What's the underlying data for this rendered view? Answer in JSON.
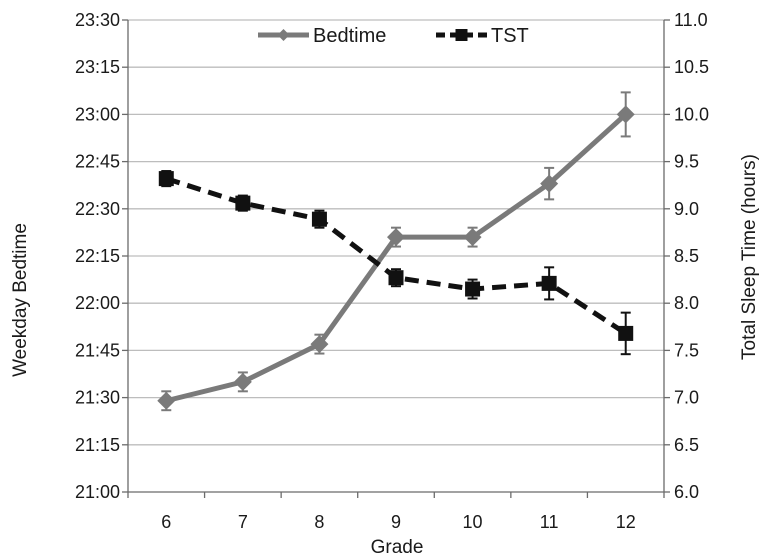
{
  "chart_data": {
    "type": "line",
    "xlabel": "Grade",
    "ylabel_left": "Weekday Bedtime",
    "ylabel_right": "Total Sleep Time (hours)",
    "x": [
      "6",
      "7",
      "8",
      "9",
      "10",
      "11",
      "12"
    ],
    "y_left_ticks": [
      "21:00",
      "21:15",
      "21:30",
      "21:45",
      "22:00",
      "22:15",
      "22:30",
      "22:45",
      "23:00",
      "23:15",
      "23:30"
    ],
    "y_left_range_minutes": [
      1260,
      1410
    ],
    "y_right_ticks": [
      "6.0",
      "6.5",
      "7.0",
      "7.5",
      "8.0",
      "8.5",
      "9.0",
      "9.5",
      "10.0",
      "10.5",
      "11.0"
    ],
    "y_right_range": [
      6.0,
      11.0
    ],
    "gridlines": true,
    "legend": {
      "placement": "top-center"
    },
    "series": [
      {
        "name": "Bedtime",
        "axis": "left",
        "color": "#7a7a7a",
        "line_style": "solid",
        "marker": "diamond",
        "values": [
          "21:29",
          "21:35",
          "21:47",
          "22:21",
          "22:21",
          "22:38",
          "23:00"
        ],
        "error": [
          "0:03",
          "0:03",
          "0:03",
          "0:03",
          "0:03",
          "0:05",
          "0:07"
        ]
      },
      {
        "name": "TST",
        "axis": "right",
        "color": "#111111",
        "line_style": "dashed",
        "marker": "square",
        "values": [
          9.32,
          9.06,
          8.89,
          8.27,
          8.15,
          8.21,
          7.68
        ],
        "error": [
          0.08,
          0.08,
          0.09,
          0.09,
          0.1,
          0.17,
          0.22
        ]
      }
    ]
  }
}
